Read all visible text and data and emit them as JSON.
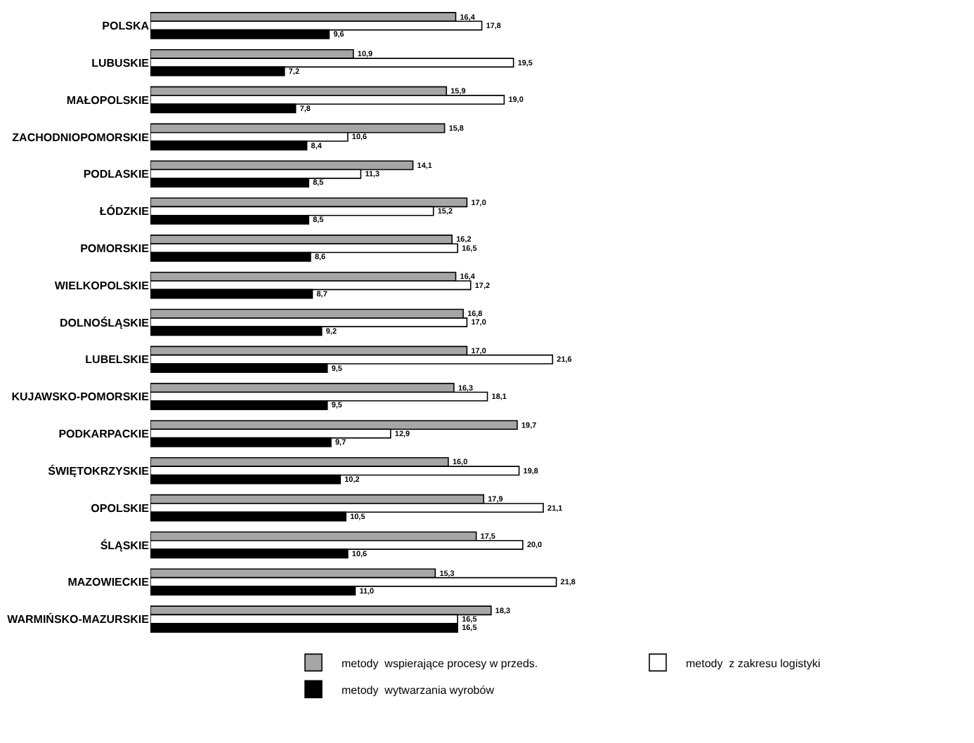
{
  "chart_data": {
    "type": "bar",
    "orientation": "horizontal",
    "categories": [
      "POLSKA",
      "LUBUSKIE",
      "MAŁOPOLSKIE",
      "ZACHODNIOPOMORSKIE",
      "PODLASKIE",
      "ŁÓDZKIE",
      "POMORSKIE",
      "WIELKOPOLSKIE",
      "DOLNOŚLĄSKIE",
      "LUBELSKIE",
      "KUJAWSKO-POMORSKIE",
      "PODKARPACKIE",
      "ŚWIĘTOKRZYSKIE",
      "OPOLSKIE",
      "ŚLĄSKIE",
      "MAZOWIECKIE",
      "WARMIŃSKO-MAZURSKIE"
    ],
    "series": [
      {
        "name": "metody  wspierające procesy w przeds.",
        "color": "#a6a6a6",
        "values": [
          16.4,
          10.9,
          15.9,
          15.8,
          14.1,
          17.0,
          16.2,
          16.4,
          16.8,
          17.0,
          16.3,
          19.7,
          16.0,
          17.9,
          17.5,
          15.3,
          18.3
        ],
        "value_labels": [
          "16,4",
          "10,9",
          "15,9",
          "15,8",
          "14,1",
          "17,0",
          "16,2",
          "16,4",
          "16,8",
          "17,0",
          "16,3",
          "19,7",
          "16,0",
          "17,9",
          "17,5",
          "15,3",
          "18,3"
        ]
      },
      {
        "name": "metody  z zakresu logistyki",
        "color": "#ffffff",
        "values": [
          17.8,
          19.5,
          19.0,
          10.6,
          11.3,
          15.2,
          16.5,
          17.2,
          17.0,
          21.6,
          18.1,
          12.9,
          19.8,
          21.1,
          20.0,
          21.8,
          16.5
        ],
        "value_labels": [
          "17,8",
          "19,5",
          "19,0",
          "10,6",
          "11,3",
          "15,2",
          "16,5",
          "17,2",
          "17,0",
          "21,6",
          "18,1",
          "12,9",
          "19,8",
          "21,1",
          "20,0",
          "21,8",
          "16,5"
        ]
      },
      {
        "name": "metody  wytwarzania wyrobów",
        "color": "#000000",
        "values": [
          9.6,
          7.2,
          7.8,
          8.4,
          8.5,
          8.5,
          8.6,
          8.7,
          9.2,
          9.5,
          9.5,
          9.7,
          10.2,
          10.5,
          10.6,
          11.0,
          16.5
        ],
        "value_labels": [
          "9,6",
          "7,2",
          "7,8",
          "8,4",
          "8,5",
          "8,5",
          "8,6",
          "8,7",
          "9,2",
          "9,5",
          "9,5",
          "9,7",
          "10,2",
          "10,5",
          "10,6",
          "11,0",
          "16,5"
        ]
      }
    ],
    "tick_labels": "y",
    "legend": "bottom"
  }
}
